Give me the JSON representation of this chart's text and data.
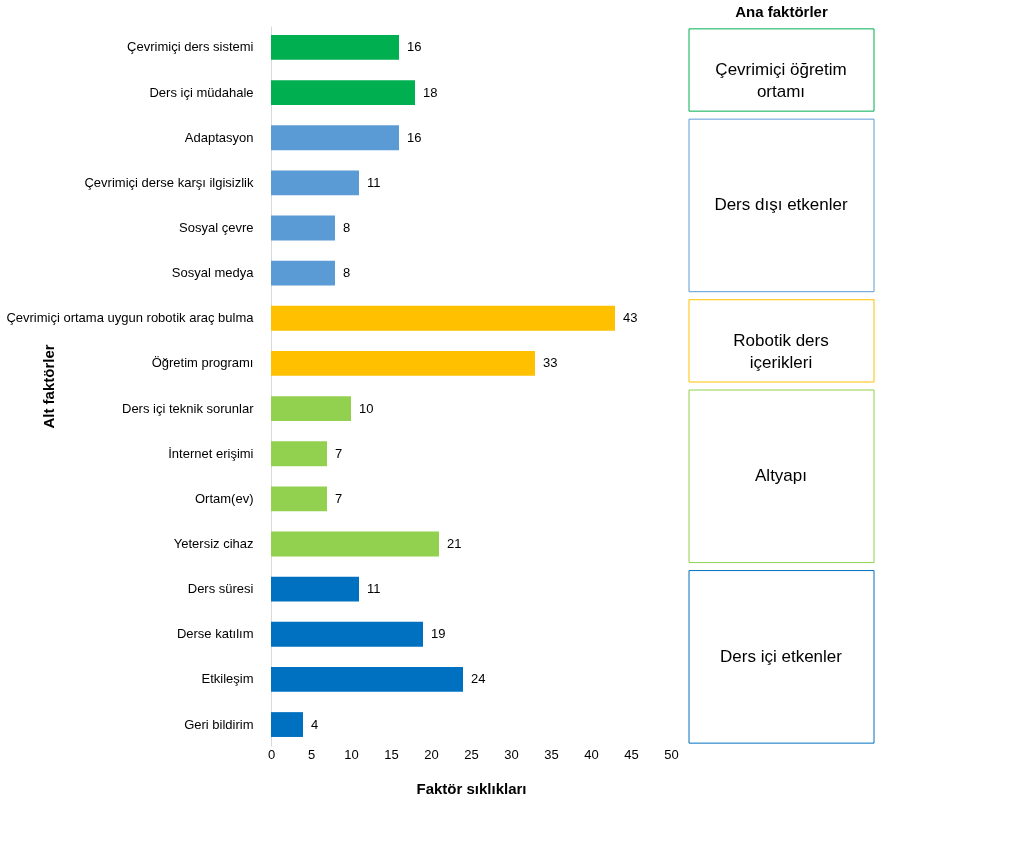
{
  "chart_data": {
    "type": "bar",
    "orientation": "horizontal",
    "xlabel": "Faktör sıklıkları",
    "ylabel": "Alt faktörler",
    "legend_title": "Ana faktörler",
    "legend": "right",
    "data_labels": true,
    "grid": false,
    "xlim": [
      0,
      50
    ],
    "xticks": [
      0,
      5,
      10,
      15,
      20,
      25,
      30,
      35,
      40,
      45,
      50
    ],
    "categories": [
      "Çevrimiçi ders sistemi",
      "Ders içi müdahale",
      "Adaptasyon",
      "Çevrimiçi derse karşı ilgisizlik",
      "Sosyal çevre",
      "Sosyal medya",
      "Çevrimiçi ortama uygun robotik araç bulma",
      "Öğretim programı ",
      "Ders içi teknik sorunlar",
      "İnternet erişimi",
      "Ortam(ev)",
      "Yetersiz cihaz",
      "Ders süresi",
      "Derse katılım",
      "Etkileşim",
      "Geri bildirim"
    ],
    "series": [
      {
        "name": "Çevrimiçi öğretim ortamı",
        "color": "#00b050",
        "values": [
          16,
          18,
          null,
          null,
          null,
          null,
          null,
          null,
          null,
          null,
          null,
          null,
          null,
          null,
          null,
          null
        ]
      },
      {
        "name": "Ders dışı etkenler",
        "color": "#5b9bd5",
        "values": [
          null,
          null,
          16,
          11,
          8,
          8,
          null,
          null,
          null,
          null,
          null,
          null,
          null,
          null,
          null,
          null
        ]
      },
      {
        "name": "Robotik ders içerikleri",
        "color": "#ffc000",
        "values": [
          null,
          null,
          null,
          null,
          null,
          null,
          43,
          33,
          null,
          null,
          null,
          null,
          null,
          null,
          null,
          null
        ]
      },
      {
        "name": "Altyapı",
        "color": "#92d050",
        "values": [
          null,
          null,
          null,
          null,
          null,
          null,
          null,
          null,
          10,
          7,
          7,
          21,
          null,
          null,
          null,
          null
        ]
      },
      {
        "name": "Ders içi etkenler",
        "color": "#0070c0",
        "values": [
          null,
          null,
          null,
          null,
          null,
          null,
          null,
          null,
          null,
          null,
          null,
          null,
          11,
          19,
          24,
          4
        ]
      }
    ]
  }
}
